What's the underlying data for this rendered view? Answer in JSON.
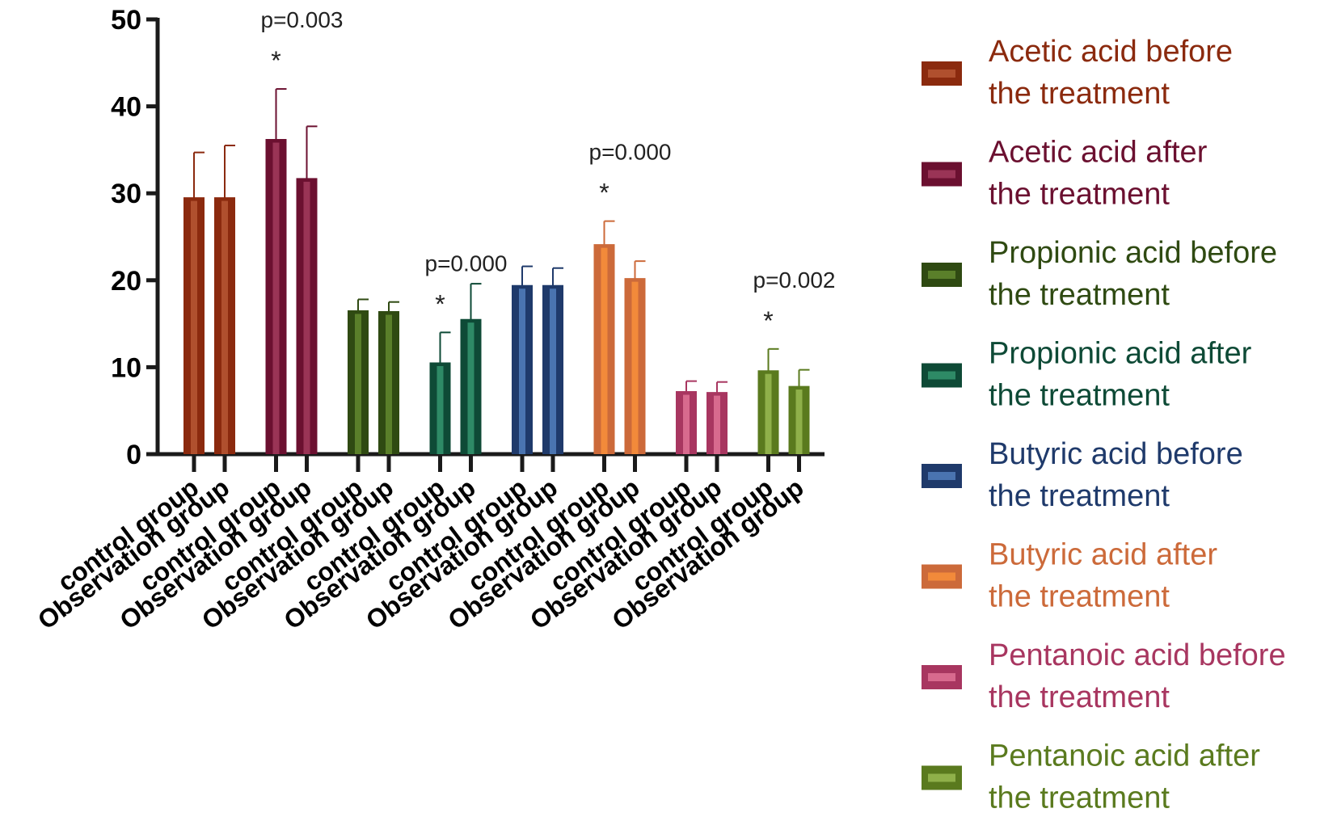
{
  "chart_data": {
    "type": "bar",
    "title": "",
    "xlabel": "",
    "ylabel": "",
    "ylim": [
      0,
      50
    ],
    "yticks": [
      0,
      10,
      20,
      30,
      40,
      50
    ],
    "categories": [
      "control group",
      "Observation group"
    ],
    "series": [
      {
        "name": "Acetic acid before the treatment",
        "legend_lines": [
          "Acetic acid before",
          "the treatment"
        ],
        "color": "#8B2A0E",
        "fill": "#B0502E",
        "values": [
          29.5,
          29.5
        ],
        "errors": [
          5.2,
          6.0
        ]
      },
      {
        "name": "Acetic acid after the treatment",
        "legend_lines": [
          "Acetic acid after",
          "the treatment"
        ],
        "color": "#6B1030",
        "fill": "#9A3456",
        "values": [
          36.2,
          31.7
        ],
        "errors": [
          5.8,
          6.0
        ]
      },
      {
        "name": "Propionic acid before the treatment",
        "legend_lines": [
          "Propionic acid before",
          "the treatment"
        ],
        "color": "#2F4A12",
        "fill": "#5A7F2A",
        "values": [
          16.5,
          16.4
        ],
        "errors": [
          1.3,
          1.1
        ]
      },
      {
        "name": "Propionic acid after the treatment",
        "legend_lines": [
          "Propionic acid after",
          "the treatment"
        ],
        "color": "#0E4A36",
        "fill": "#2E8A66",
        "values": [
          10.5,
          15.5
        ],
        "errors": [
          3.5,
          4.1
        ]
      },
      {
        "name": "Butyric acid before the treatment",
        "legend_lines": [
          "Butyric acid before",
          "the treatment"
        ],
        "color": "#1F3A6B",
        "fill": "#4A74B0",
        "values": [
          19.4,
          19.4
        ],
        "errors": [
          2.2,
          2.0
        ]
      },
      {
        "name": "Butyric acid after the treatment",
        "legend_lines": [
          "Butyric acid after",
          "the treatment"
        ],
        "color": "#CC6A3A",
        "fill": "#F28A3A",
        "values": [
          24.1,
          20.2
        ],
        "errors": [
          2.7,
          2.0
        ]
      },
      {
        "name": "Pentanoic acid before the treatment",
        "legend_lines": [
          " Pentanoic acid before",
          "the treatment"
        ],
        "color": "#A83660",
        "fill": "#D86A8E",
        "values": [
          7.2,
          7.1
        ],
        "errors": [
          1.2,
          1.2
        ]
      },
      {
        "name": "Pentanoic acid after the treatment",
        "legend_lines": [
          " Pentanoic acid after",
          "the treatment"
        ],
        "color": "#5A7A1E",
        "fill": "#8FB04A",
        "values": [
          9.6,
          7.8
        ],
        "errors": [
          2.5,
          1.9
        ]
      }
    ],
    "annotations": [
      {
        "series_index": 1,
        "star": "*",
        "p": "p=0.003"
      },
      {
        "series_index": 3,
        "star": "*",
        "p": "p=0.000"
      },
      {
        "series_index": 5,
        "star": "*",
        "p": "p=0.000"
      },
      {
        "series_index": 7,
        "star": "*",
        "p": "p=0.002"
      }
    ],
    "legend_position": "right"
  }
}
